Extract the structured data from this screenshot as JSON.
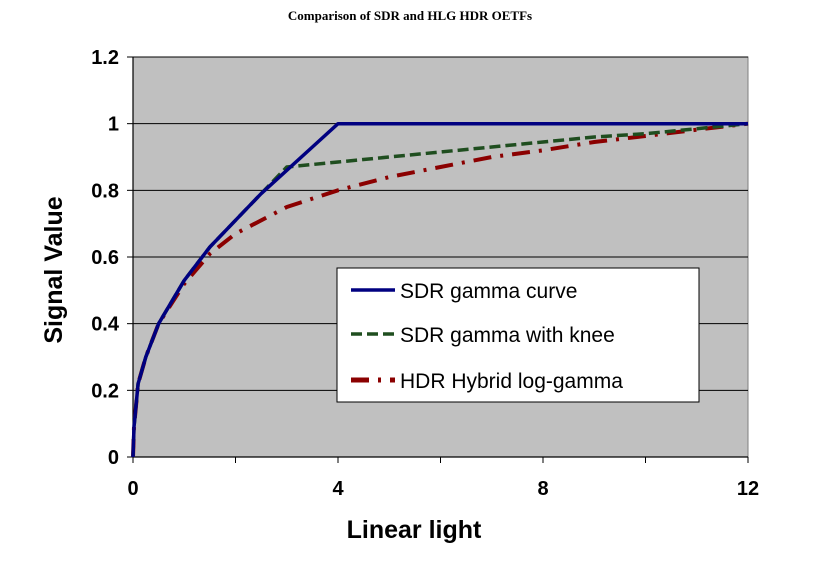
{
  "chart_data": {
    "type": "line",
    "title": "Comparison of SDR and HLG HDR OETFs",
    "xlabel": "Linear light",
    "ylabel": "Signal Value",
    "xlim": [
      0,
      12
    ],
    "ylim": [
      0,
      1.2
    ],
    "xticks": [
      0,
      4,
      8,
      12
    ],
    "xtick_labels": [
      "0",
      "4",
      "8",
      "12"
    ],
    "xtick_minor": [
      2,
      6,
      10
    ],
    "yticks": [
      0,
      0.2,
      0.4,
      0.6,
      0.8,
      1,
      1.2
    ],
    "ytick_labels": [
      "0",
      "0.2",
      "0.4",
      "0.6",
      "0.8",
      "1",
      "1.2"
    ],
    "grid": "horizontal",
    "plot_background": "#c0c0c0",
    "legend_position": "inside-bottom-right",
    "series": [
      {
        "name": "SDR gamma curve",
        "color": "#000080",
        "dash": "solid",
        "x": [
          0,
          0.02,
          0.1,
          0.25,
          0.5,
          1,
          1.5,
          2,
          2.5,
          3,
          3.5,
          4,
          12
        ],
        "y": [
          0,
          0.09,
          0.22,
          0.3,
          0.4,
          0.53,
          0.63,
          0.71,
          0.79,
          0.86,
          0.93,
          1.0,
          1.0
        ]
      },
      {
        "name": "SDR gamma with knee",
        "color": "#1f4e1f",
        "dash": "dash",
        "x": [
          0,
          0.02,
          0.1,
          0.25,
          0.5,
          1,
          1.5,
          2,
          2.5,
          3,
          4,
          5,
          6,
          7,
          8,
          9,
          10,
          11,
          12
        ],
        "y": [
          0,
          0.09,
          0.22,
          0.3,
          0.4,
          0.53,
          0.63,
          0.71,
          0.79,
          0.87,
          0.885,
          0.9,
          0.915,
          0.93,
          0.945,
          0.96,
          0.97,
          0.985,
          1.0
        ]
      },
      {
        "name": "HDR Hybrid log-gamma",
        "color": "#8b0000",
        "dash": "dashdot",
        "x": [
          0,
          0.02,
          0.1,
          0.25,
          0.5,
          1,
          1.5,
          2,
          3,
          4,
          5,
          6,
          7,
          8,
          9,
          10,
          11,
          12
        ],
        "y": [
          0,
          0.09,
          0.22,
          0.3,
          0.4,
          0.52,
          0.61,
          0.67,
          0.75,
          0.8,
          0.84,
          0.87,
          0.9,
          0.92,
          0.945,
          0.963,
          0.982,
          1.0
        ]
      }
    ]
  }
}
